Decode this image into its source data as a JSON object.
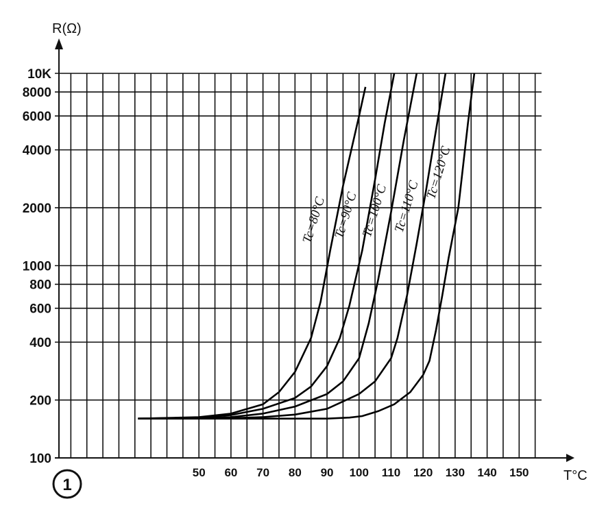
{
  "chart_data": {
    "type": "line",
    "ylabel": "R(Ω)",
    "xlabel": "T°C",
    "yscale": "log",
    "ylim": [
      100,
      10000
    ],
    "y_ticks": [
      {
        "value": 100,
        "label": "100"
      },
      {
        "value": 200,
        "label": "200"
      },
      {
        "value": 400,
        "label": "400"
      },
      {
        "value": 600,
        "label": "600"
      },
      {
        "value": 800,
        "label": "800"
      },
      {
        "value": 1000,
        "label": "1000"
      },
      {
        "value": 2000,
        "label": "2000"
      },
      {
        "value": 4000,
        "label": "4000"
      },
      {
        "value": 6000,
        "label": "6000"
      },
      {
        "value": 8000,
        "label": "8000"
      },
      {
        "value": 10000,
        "label": "10K"
      }
    ],
    "x_ticks": [
      {
        "value": 50,
        "label": "50"
      },
      {
        "value": 60,
        "label": "60"
      },
      {
        "value": 70,
        "label": "70"
      },
      {
        "value": 80,
        "label": "80"
      },
      {
        "value": 90,
        "label": "90"
      },
      {
        "value": 100,
        "label": "100"
      },
      {
        "value": 110,
        "label": "110"
      },
      {
        "value": 120,
        "label": "120"
      },
      {
        "value": 130,
        "label": "130"
      },
      {
        "value": 140,
        "label": "140"
      },
      {
        "value": 150,
        "label": "150"
      }
    ],
    "xlim": [
      5,
      157
    ],
    "grid": true,
    "series": [
      {
        "name": "Tc=80°C",
        "x": [
          31,
          50,
          60,
          70,
          75,
          80,
          85,
          88,
          91,
          95,
          100,
          102
        ],
        "y": [
          160,
          163,
          170,
          190,
          220,
          280,
          420,
          650,
          1200,
          2600,
          6000,
          8500
        ]
      },
      {
        "name": "Tc=90°C",
        "x": [
          31,
          50,
          60,
          70,
          80,
          85,
          90,
          94,
          97,
          101,
          105,
          108,
          111
        ],
        "y": [
          160,
          162,
          167,
          180,
          205,
          235,
          300,
          420,
          620,
          1200,
          2800,
          5500,
          10000
        ]
      },
      {
        "name": "Tc=100°C",
        "x": [
          31,
          50,
          60,
          70,
          80,
          90,
          95,
          100,
          103,
          106,
          110,
          114,
          118
        ],
        "y": [
          160,
          161,
          163,
          170,
          185,
          215,
          250,
          330,
          500,
          850,
          1900,
          4500,
          10000
        ]
      },
      {
        "name": "Tc=110°C",
        "x": [
          31,
          50,
          60,
          70,
          80,
          90,
          100,
          105,
          110,
          112,
          115,
          118,
          121,
          123,
          127
        ],
        "y": [
          160,
          160,
          161,
          163,
          168,
          180,
          215,
          250,
          330,
          420,
          700,
          1300,
          2500,
          4000,
          10000
        ]
      },
      {
        "name": "Tc=120°C",
        "x": [
          31,
          50,
          60,
          70,
          80,
          90,
          97,
          101,
          106,
          111,
          116,
          120,
          122,
          124,
          126,
          128,
          131,
          134,
          136
        ],
        "y": [
          160,
          160,
          160,
          160,
          160,
          160,
          162,
          165,
          175,
          190,
          220,
          270,
          320,
          460,
          700,
          1100,
          2000,
          5500,
          10000
        ]
      }
    ]
  },
  "badge": "1",
  "colors": {
    "ink": "#111111",
    "background": "#ffffff"
  }
}
